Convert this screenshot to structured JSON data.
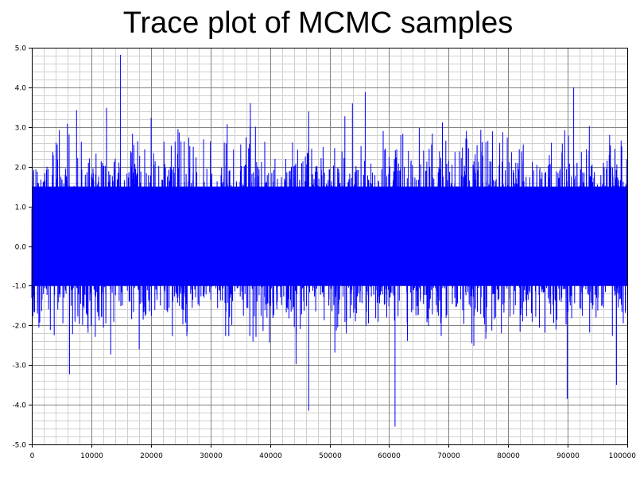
{
  "chart_data": {
    "type": "line",
    "title": "Trace plot of MCMC samples",
    "xlabel": "",
    "ylabel": "",
    "xlim": [
      0,
      100000
    ],
    "ylim": [
      -5.0,
      5.0
    ],
    "x_ticks": [
      "0",
      "10000",
      "20000",
      "30000",
      "40000",
      "50000",
      "60000",
      "70000",
      "80000",
      "90000",
      "100000"
    ],
    "y_ticks": [
      "5.0",
      "4.0",
      "3.0",
      "2.0",
      "1.0",
      "0.0",
      "-1.0",
      "-2.0",
      "-3.0",
      "-4.0",
      "-5.0"
    ],
    "grid": true,
    "series": [
      {
        "color": "#0000ff",
        "n_samples": 100000,
        "dense_band": [
          -1.0,
          1.5
        ],
        "notable_points": [
          {
            "x": 14900,
            "y": 4.82
          },
          {
            "x": 91000,
            "y": 4.0
          },
          {
            "x": 56000,
            "y": 3.88
          },
          {
            "x": 61000,
            "y": -4.55
          },
          {
            "x": 46500,
            "y": -4.15
          },
          {
            "x": 89900,
            "y": -3.85
          }
        ]
      }
    ],
    "colors": {
      "line": "#0000ff",
      "major_grid": "#808080",
      "minor_grid": "#d0d0d0",
      "background": "#ffffff"
    }
  }
}
